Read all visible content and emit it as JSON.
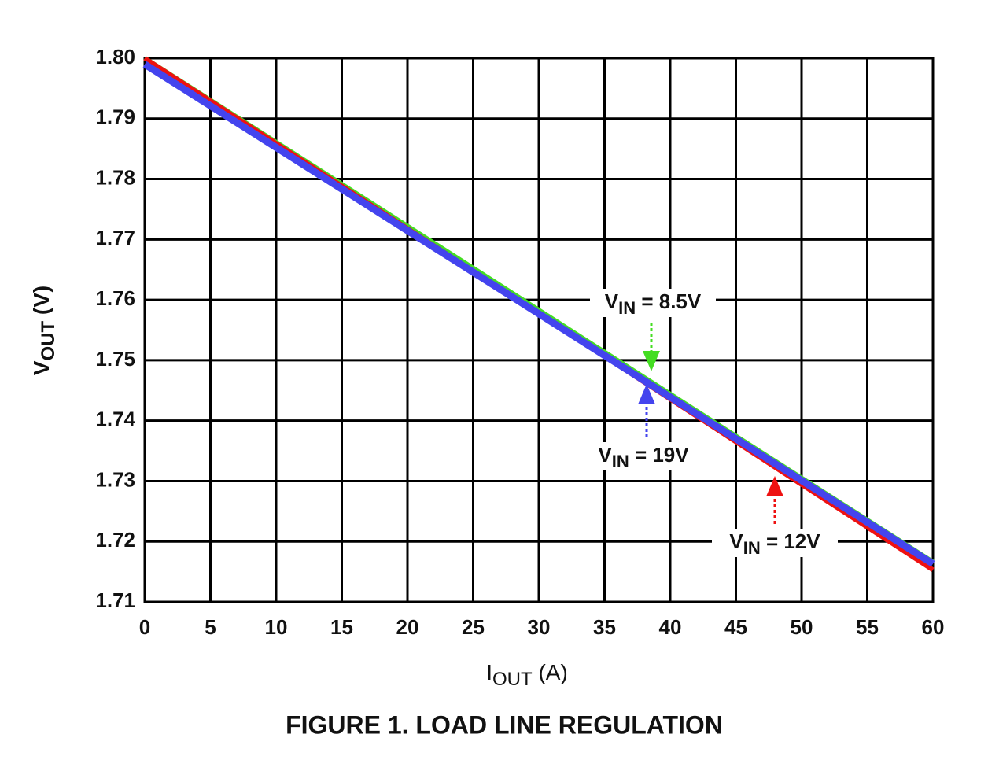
{
  "chart_data": {
    "type": "line",
    "title": "FIGURE 1.  LOAD LINE REGULATION",
    "x_label": {
      "main": "I",
      "sub": "OUT",
      "rest": " (A)"
    },
    "y_label": {
      "main": "V",
      "sub": "OUT",
      "rest": " (V)"
    },
    "x": [
      0,
      30,
      60
    ],
    "series": [
      {
        "name": {
          "main": "V",
          "sub": "IN",
          "rest": " = 8.5V"
        },
        "color": "#44dd22",
        "values": [
          1.8,
          1.7583,
          1.7166
        ]
      },
      {
        "name": {
          "main": "V",
          "sub": "IN",
          "rest": " = 12V"
        },
        "color": "#ee1111",
        "values": [
          1.8,
          1.7577,
          1.7153
        ]
      },
      {
        "name": {
          "main": "V",
          "sub": "IN",
          "rest": " = 19V"
        },
        "color": "#4444ee",
        "values": [
          1.799,
          1.7577,
          1.7163
        ]
      }
    ],
    "xlim": [
      0,
      60
    ],
    "xticks": [
      0,
      5,
      10,
      15,
      20,
      25,
      30,
      35,
      40,
      45,
      50,
      55,
      60
    ],
    "ylim": [
      1.71,
      1.8
    ],
    "yticks": [
      1.71,
      1.72,
      1.73,
      1.74,
      1.75,
      1.76,
      1.77,
      1.78,
      1.79,
      {
        "value": 1.8,
        "label": "1.80"
      }
    ],
    "grid": true
  }
}
